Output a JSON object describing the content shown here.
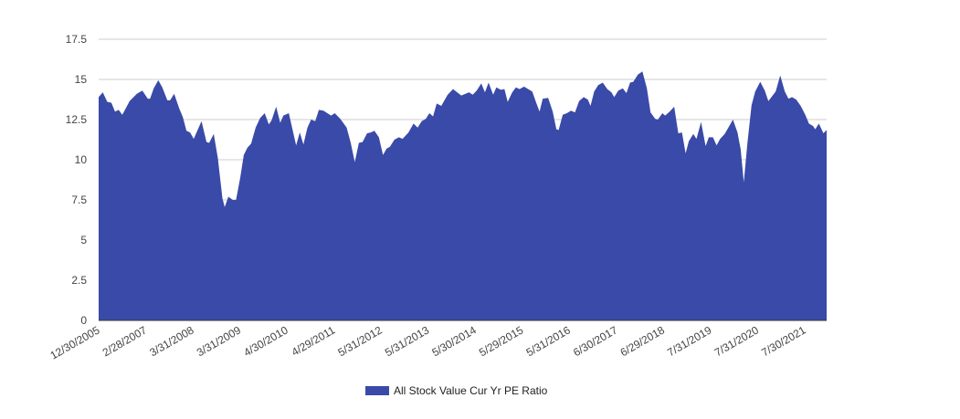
{
  "chart_data": {
    "type": "area",
    "title": "",
    "xlabel": "",
    "ylabel": "",
    "ylim": [
      0,
      17.5
    ],
    "xlim": [
      2006.0,
      2022.0
    ],
    "grid": true,
    "color": "#3a4aa8",
    "legend_placement": "bottom",
    "y_ticks": [
      "0",
      "2.5",
      "5",
      "7.5",
      "10",
      "12.5",
      "15",
      "17.5"
    ],
    "x_tick_labels": [
      "12/30/2005",
      "2/28/2007",
      "3/31/2008",
      "3/31/2009",
      "4/30/2010",
      "4/29/2011",
      "5/31/2012",
      "5/31/2013",
      "5/30/2014",
      "5/29/2015",
      "5/31/2016",
      "6/30/2017",
      "6/29/2018",
      "7/31/2019",
      "7/31/2020",
      "7/30/2021"
    ],
    "series": [
      {
        "name": "All Stock Value Cur Yr PE Ratio",
        "x": [
          2006.0,
          2006.09,
          2006.19,
          2006.28,
          2006.36,
          2006.44,
          2006.52,
          2006.68,
          2006.84,
          2006.96,
          2007.08,
          2007.13,
          2007.21,
          2007.31,
          2007.4,
          2007.51,
          2007.57,
          2007.66,
          2007.77,
          2007.85,
          2007.93,
          2008.01,
          2008.09,
          2008.26,
          2008.37,
          2008.43,
          2008.53,
          2008.62,
          2008.72,
          2008.77,
          2008.85,
          2008.95,
          2009.02,
          2009.11,
          2009.19,
          2009.27,
          2009.35,
          2009.45,
          2009.55,
          2009.65,
          2009.74,
          2009.8,
          2009.9,
          2009.99,
          2010.06,
          2010.18,
          2010.34,
          2010.42,
          2010.5,
          2010.59,
          2010.67,
          2010.76,
          2010.84,
          2010.94,
          2011.11,
          2011.19,
          2011.31,
          2011.45,
          2011.54,
          2011.63,
          2011.72,
          2011.8,
          2011.9,
          2011.98,
          2012.06,
          2012.16,
          2012.25,
          2012.33,
          2012.4,
          2012.5,
          2012.6,
          2012.68,
          2012.81,
          2012.92,
          2013.01,
          2013.1,
          2013.19,
          2013.27,
          2013.35,
          2013.43,
          2013.53,
          2013.67,
          2013.79,
          2013.88,
          2013.97,
          2014.14,
          2014.22,
          2014.31,
          2014.41,
          2014.49,
          2014.57,
          2014.67,
          2014.74,
          2014.84,
          2014.92,
          2014.99,
          2015.09,
          2015.17,
          2015.25,
          2015.35,
          2015.53,
          2015.61,
          2015.69,
          2015.76,
          2015.88,
          2015.98,
          2016.06,
          2016.11,
          2016.2,
          2016.29,
          2016.38,
          2016.47,
          2016.56,
          2016.66,
          2016.75,
          2016.81,
          2016.89,
          2016.98,
          2017.08,
          2017.18,
          2017.27,
          2017.33,
          2017.42,
          2017.52,
          2017.6,
          2017.68,
          2017.75,
          2017.85,
          2017.95,
          2018.05,
          2018.13,
          2018.23,
          2018.29,
          2018.39,
          2018.45,
          2018.55,
          2018.65,
          2018.74,
          2018.82,
          2018.9,
          2018.97,
          2019.07,
          2019.14,
          2019.24,
          2019.34,
          2019.41,
          2019.5,
          2019.58,
          2019.66,
          2019.76,
          2019.94,
          2020.04,
          2020.11,
          2020.18,
          2020.26,
          2020.35,
          2020.43,
          2020.54,
          2020.64,
          2020.72,
          2020.88,
          2020.98,
          2021.08,
          2021.16,
          2021.24,
          2021.33,
          2021.43,
          2021.53,
          2021.61,
          2021.7,
          2021.75,
          2021.83,
          2021.93,
          2022.0
        ],
        "y": [
          13.9,
          14.2,
          13.6,
          13.55,
          13.0,
          13.1,
          12.8,
          13.65,
          14.1,
          14.3,
          13.8,
          13.8,
          14.45,
          14.95,
          14.5,
          13.7,
          13.7,
          14.1,
          13.2,
          12.65,
          11.8,
          11.7,
          11.3,
          12.4,
          11.1,
          11.05,
          11.6,
          10.1,
          7.6,
          7.05,
          7.7,
          7.5,
          7.5,
          8.85,
          10.3,
          10.75,
          11.0,
          12.0,
          12.6,
          12.9,
          12.2,
          12.45,
          13.3,
          12.3,
          12.75,
          12.9,
          10.9,
          11.7,
          10.95,
          12.0,
          12.5,
          12.4,
          13.1,
          13.05,
          12.75,
          12.9,
          12.55,
          12.0,
          11.05,
          9.85,
          11.05,
          11.1,
          11.65,
          11.7,
          11.8,
          11.4,
          10.3,
          10.7,
          10.8,
          11.25,
          11.4,
          11.3,
          11.7,
          12.25,
          12.0,
          12.4,
          12.55,
          12.9,
          12.7,
          13.5,
          13.35,
          14.05,
          14.4,
          14.2,
          14.0,
          14.2,
          14.05,
          14.3,
          14.75,
          14.2,
          14.8,
          14.05,
          14.5,
          14.35,
          14.4,
          13.6,
          14.2,
          14.5,
          14.4,
          14.55,
          14.25,
          13.6,
          13.0,
          13.8,
          13.85,
          13.0,
          11.9,
          11.85,
          12.8,
          12.9,
          13.05,
          12.95,
          13.65,
          13.9,
          13.75,
          13.35,
          14.25,
          14.65,
          14.8,
          14.4,
          14.2,
          13.9,
          14.3,
          14.45,
          14.15,
          14.8,
          14.85,
          15.3,
          15.5,
          14.45,
          12.95,
          12.55,
          12.5,
          12.9,
          12.75,
          13.0,
          13.3,
          11.65,
          11.7,
          10.4,
          11.15,
          11.6,
          11.3,
          12.35,
          10.85,
          11.4,
          11.4,
          10.9,
          11.3,
          11.6,
          12.5,
          11.7,
          10.65,
          8.6,
          11.05,
          13.4,
          14.25,
          14.85,
          14.3,
          13.65,
          14.25,
          15.25,
          14.25,
          13.8,
          13.9,
          13.75,
          13.35,
          12.8,
          12.25,
          12.1,
          11.9,
          12.25,
          11.65,
          11.85
        ]
      }
    ]
  }
}
